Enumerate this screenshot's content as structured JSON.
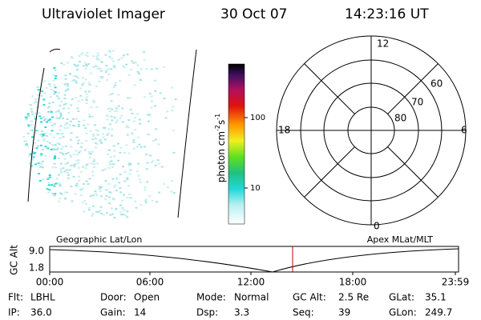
{
  "header": {
    "title": "Ultraviolet Imager",
    "date": "30 Oct 07",
    "time": "14:23:16 UT"
  },
  "colorbar": {
    "ticks": [
      "100",
      "10"
    ],
    "unit": {
      "base": "photon cm",
      "exp1": "-2",
      "mid": "s",
      "exp2": "-1"
    }
  },
  "polar": {
    "hours": {
      "top": "12",
      "left": "18",
      "right": "6",
      "bottom": "0"
    },
    "latitudes": [
      "60",
      "70",
      "80"
    ]
  },
  "altitude": {
    "axis_label": "GC Alt",
    "yticks": [
      "9.0",
      "1.8"
    ],
    "left_label": "Geographic Lat/Lon",
    "right_label": "Apex MLat/MLT",
    "xticks": [
      "00:00",
      "06:00",
      "12:00",
      "18:00",
      "23:59"
    ]
  },
  "footer": {
    "rows": [
      [
        {
          "label": "Flt:",
          "value": "LBHL"
        },
        {
          "label": "Door:",
          "value": "Open"
        },
        {
          "label": "Mode:",
          "value": "Normal"
        },
        {
          "label": "GC Alt:",
          "value": "2.5 Re"
        },
        {
          "label": "GLat:",
          "value": "35.1"
        }
      ],
      [
        {
          "label": "IP:",
          "value": "36.0"
        },
        {
          "label": "Gain:",
          "value": "14"
        },
        {
          "label": "Dsp:",
          "value": "3.3"
        },
        {
          "label": "Seq:",
          "value": "39"
        },
        {
          "label": "GLon:",
          "value": "249.7"
        }
      ]
    ]
  }
}
